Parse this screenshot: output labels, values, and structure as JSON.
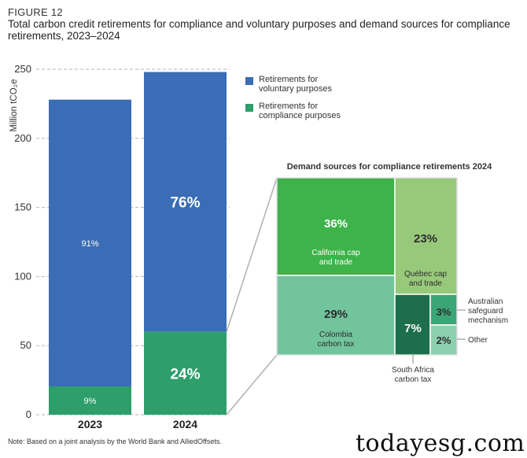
{
  "figure_label": "FIGURE 12",
  "title": "Total carbon credit retirements for compliance and voluntary purposes and demand sources for compliance retirements, 2023–2024",
  "note": "Note: Based on a joint analysis by the World Bank and AlliedOffsets.",
  "watermark": "todayesg.com",
  "colors": {
    "voluntary": "#3a6db5",
    "compliance": "#2e9e6b",
    "california": "#3db34a",
    "quebec": "#98c97a",
    "colombia": "#72c49c",
    "south_africa": "#1d6f4b",
    "australia": "#3aa676",
    "other": "#8ccfae",
    "axis_text": "#333333",
    "grid": "#b5b5b5",
    "connector": "#b0b0b0"
  },
  "chart_data": [
    {
      "type": "bar",
      "stacked": true,
      "ylabel": "Million tCO₂e",
      "ylim": [
        0,
        250
      ],
      "yticks": [
        0,
        50,
        100,
        150,
        200,
        250
      ],
      "grid": true,
      "categories": [
        "2023",
        "2024"
      ],
      "series": [
        {
          "name": "Retirements for compliance purposes",
          "color_key": "compliance",
          "values": [
            20.5,
            60
          ],
          "labels": [
            "9%",
            "24%"
          ]
        },
        {
          "name": "Retirements for voluntary purposes",
          "color_key": "voluntary",
          "values": [
            207.5,
            188
          ],
          "labels": [
            "91%",
            "76%"
          ]
        }
      ],
      "legend": {
        "position": "top-right",
        "entries": [
          {
            "label": "Retirements for voluntary purposes",
            "lines": [
              "Retirements for",
              "voluntary purposes"
            ],
            "color_key": "voluntary"
          },
          {
            "label": "Retirements for compliance purposes",
            "lines": [
              "Retirements for",
              "compliance purposes"
            ],
            "color_key": "compliance"
          }
        ]
      }
    },
    {
      "type": "treemap",
      "title": "Demand sources for compliance retirements 2024",
      "items": [
        {
          "id": "california",
          "pct": "36%",
          "value": 36,
          "lines": [
            "California cap",
            "and trade"
          ]
        },
        {
          "id": "quebec",
          "pct": "23%",
          "value": 23,
          "lines": [
            "Québec cap",
            "and trade"
          ]
        },
        {
          "id": "colombia",
          "pct": "29%",
          "value": 29,
          "lines": [
            "Colombia",
            "carbon tax"
          ]
        },
        {
          "id": "south_africa",
          "pct": "7%",
          "value": 7,
          "lines": [
            "South Africa",
            "carbon tax"
          ]
        },
        {
          "id": "australia",
          "pct": "3%",
          "value": 3,
          "lines": [
            "Australian",
            "safeguard",
            "mechanism"
          ]
        },
        {
          "id": "other",
          "pct": "2%",
          "value": 2,
          "lines": [
            "Other"
          ]
        }
      ]
    }
  ]
}
